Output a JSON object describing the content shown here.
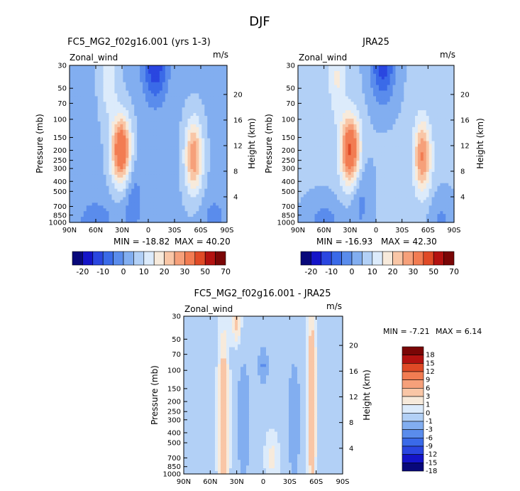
{
  "page": {
    "title": "DJF"
  },
  "colors": {
    "palette_top": [
      "#08087a",
      "#1414c8",
      "#2a46e0",
      "#3a6ae8",
      "#5a8cec",
      "#82aef0",
      "#b2d0f6",
      "#dcebfb",
      "#f7eadb",
      "#f9c6a6",
      "#f6a07a",
      "#f27c52",
      "#e04a26",
      "#b31210",
      "#7a0606"
    ],
    "palette_diff": [
      "#08087a",
      "#1414c8",
      "#2a46e0",
      "#3a6ae8",
      "#5a8cec",
      "#82aef0",
      "#b2d0f6",
      "#dcebfb",
      "#f7eadb",
      "#f9c6a6",
      "#f6a07a",
      "#f27c52",
      "#e04a26",
      "#b31210",
      "#7a0606"
    ]
  },
  "chart_data": [
    {
      "type": "heatmap",
      "id": "model",
      "title": "FC5_MG2_f02g16.001 (yrs 1-3)",
      "variable": "Zonal_wind",
      "units": "m/s",
      "ylabel": "Pressure (mb)",
      "ylabel_right": "Height (km)",
      "x_ticks": [
        "90N",
        "60N",
        "30N",
        "0",
        "30S",
        "60S",
        "90S"
      ],
      "y_ticks": [
        "30",
        "50",
        "70",
        "100",
        "150",
        "200",
        "250",
        "300",
        "400",
        "500",
        "700",
        "850",
        "1000"
      ],
      "height_ticks": [
        "20",
        "16",
        "12",
        "8",
        "4"
      ],
      "min_text": "MIN = -18.82",
      "max_text": "MAX = 40.20",
      "levels": [
        -20,
        -15,
        -10,
        -5,
        0,
        5,
        10,
        15,
        20,
        25,
        30,
        40,
        50,
        60,
        70
      ],
      "features": [
        {
          "kind": "jet",
          "lat": 32,
          "pressure": 200,
          "value": 40.2
        },
        {
          "kind": "jet",
          "lat": -52,
          "pressure": 230,
          "value": 28
        },
        {
          "kind": "easterly",
          "lat": -8,
          "pressure": 30,
          "value": -18.8
        },
        {
          "kind": "easterly",
          "lat": 20,
          "pressure": 500,
          "value": -8
        }
      ]
    },
    {
      "type": "heatmap",
      "id": "obs",
      "title": "JRA25",
      "variable": "Zonal_wind",
      "units": "m/s",
      "ylabel": "Pressure (mb)",
      "ylabel_right": "Height (km)",
      "x_ticks": [
        "90N",
        "60N",
        "30N",
        "0",
        "30S",
        "60S",
        "90S"
      ],
      "y_ticks": [
        "30",
        "50",
        "70",
        "100",
        "150",
        "200",
        "250",
        "300",
        "400",
        "500",
        "700",
        "850",
        "1000"
      ],
      "height_ticks": [
        "20",
        "16",
        "12",
        "8",
        "4"
      ],
      "min_text": "MIN = -16.93",
      "max_text": "MAX = 42.30",
      "levels": [
        -20,
        -15,
        -10,
        -5,
        0,
        5,
        10,
        15,
        20,
        25,
        30,
        40,
        50,
        60,
        70
      ],
      "features": [
        {
          "kind": "jet",
          "lat": 30,
          "pressure": 200,
          "value": 42.3
        },
        {
          "kind": "jet",
          "lat": -50,
          "pressure": 230,
          "value": 30
        },
        {
          "kind": "easterly",
          "lat": -10,
          "pressure": 30,
          "value": -16.9
        }
      ]
    },
    {
      "type": "heatmap",
      "id": "diff",
      "title": "FC5_MG2_f02g16.001 - JRA25",
      "variable": "Zonal_wind",
      "units": "m/s",
      "ylabel": "Pressure (mb)",
      "ylabel_right": "Height (km)",
      "x_ticks": [
        "90N",
        "60N",
        "30N",
        "0",
        "30S",
        "60S",
        "90S"
      ],
      "y_ticks": [
        "30",
        "50",
        "70",
        "100",
        "150",
        "200",
        "250",
        "300",
        "400",
        "500",
        "700",
        "850",
        "1000"
      ],
      "height_ticks": [
        "20",
        "16",
        "12",
        "8",
        "4"
      ],
      "min_text": "MIN =  -7.21",
      "max_text": "MAX =   6.14",
      "levels": [
        -18,
        -15,
        -12,
        -9,
        -6,
        -3,
        -1,
        0,
        1,
        3,
        6,
        9,
        12,
        15,
        18
      ]
    }
  ],
  "colorbar_top": {
    "labels": [
      "-20",
      "-10",
      "0",
      "10",
      "20",
      "30",
      "50",
      "70"
    ]
  },
  "colorbar_diff": {
    "labels": [
      "18",
      "15",
      "12",
      "9",
      "6",
      "3",
      "1",
      "0",
      "-1",
      "-3",
      "-6",
      "-9",
      "-12",
      "-15",
      "-18"
    ]
  }
}
